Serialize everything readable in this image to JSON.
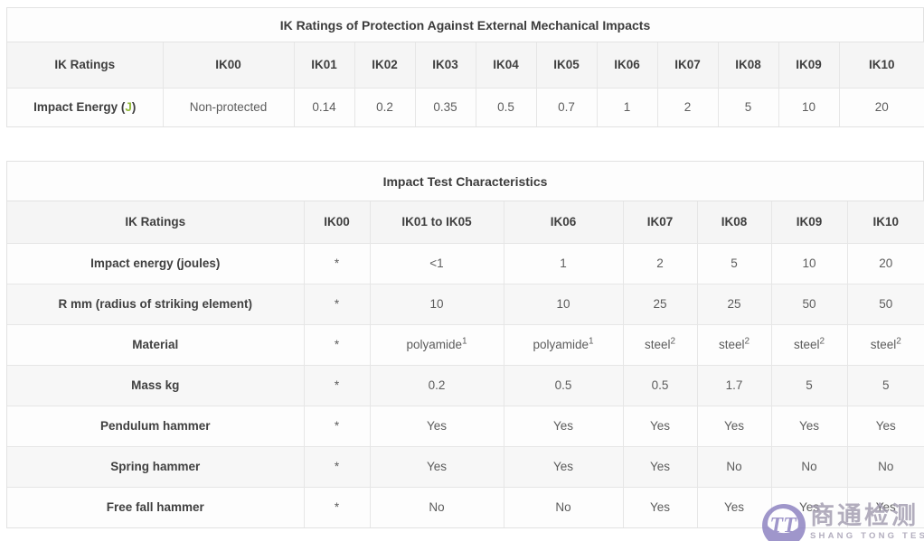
{
  "colors": {
    "accent_green": "#93b93d",
    "header_bg": "#f5f5f5",
    "stripe_bg": "#f7f7f7",
    "border": "#e2e2e2",
    "watermark_purple": "#8b80c0",
    "watermark_gray": "#a29cb0"
  },
  "table1": {
    "title": "IK Ratings of Protection Against External Mechanical Impacts",
    "header": [
      "IK Ratings",
      "IK00",
      "IK01",
      "IK02",
      "IK03",
      "IK04",
      "IK05",
      "IK06",
      "IK07",
      "IK08",
      "IK09",
      "IK10"
    ],
    "rows": [
      {
        "label": {
          "parts": [
            {
              "text": "Impact Energy ("
            },
            {
              "text": "J",
              "accent": true
            },
            {
              "text": ")"
            }
          ]
        },
        "cells": [
          "Non-protected",
          "0.14",
          "0.2",
          "0.35",
          "0.5",
          "0.7",
          "1",
          "2",
          "5",
          "10",
          "20"
        ]
      }
    ]
  },
  "table2": {
    "title": "Impact Test Characteristics",
    "header": [
      "IK Ratings",
      "IK00",
      "IK01 to IK05",
      "IK06",
      "IK07",
      "IK08",
      "IK09",
      "IK10"
    ],
    "rows": [
      {
        "label": "Impact energy (joules)",
        "cells": [
          "*",
          "<1",
          "1",
          "2",
          "5",
          "10",
          "20"
        ]
      },
      {
        "label": "R mm (radius of striking element)",
        "cells": [
          "*",
          "10",
          "10",
          "25",
          "25",
          "50",
          "50"
        ]
      },
      {
        "label": "Material",
        "cells": [
          "*",
          {
            "base": "polyamide",
            "sup": "1"
          },
          {
            "base": "polyamide",
            "sup": "1"
          },
          {
            "base": "steel",
            "sup": "2"
          },
          {
            "base": "steel",
            "sup": "2"
          },
          {
            "base": "steel",
            "sup": "2"
          },
          {
            "base": "steel",
            "sup": "2"
          }
        ]
      },
      {
        "label": "Mass kg",
        "cells": [
          "*",
          "0.2",
          "0.5",
          "0.5",
          "1.7",
          "5",
          "5"
        ]
      },
      {
        "label": "Pendulum hammer",
        "cells": [
          "*",
          "Yes",
          "Yes",
          "Yes",
          "Yes",
          "Yes",
          "Yes"
        ]
      },
      {
        "label": "Spring hammer",
        "cells": [
          "*",
          "Yes",
          "Yes",
          "Yes",
          "No",
          "No",
          "No"
        ]
      },
      {
        "label": "Free fall hammer",
        "cells": [
          "*",
          "No",
          "No",
          "Yes",
          "Yes",
          "Yes",
          "Yes"
        ]
      }
    ]
  },
  "watermark": {
    "monogram": "TT",
    "cn_text": "商通检测",
    "en_text": "SHANG TONG TESTING"
  }
}
